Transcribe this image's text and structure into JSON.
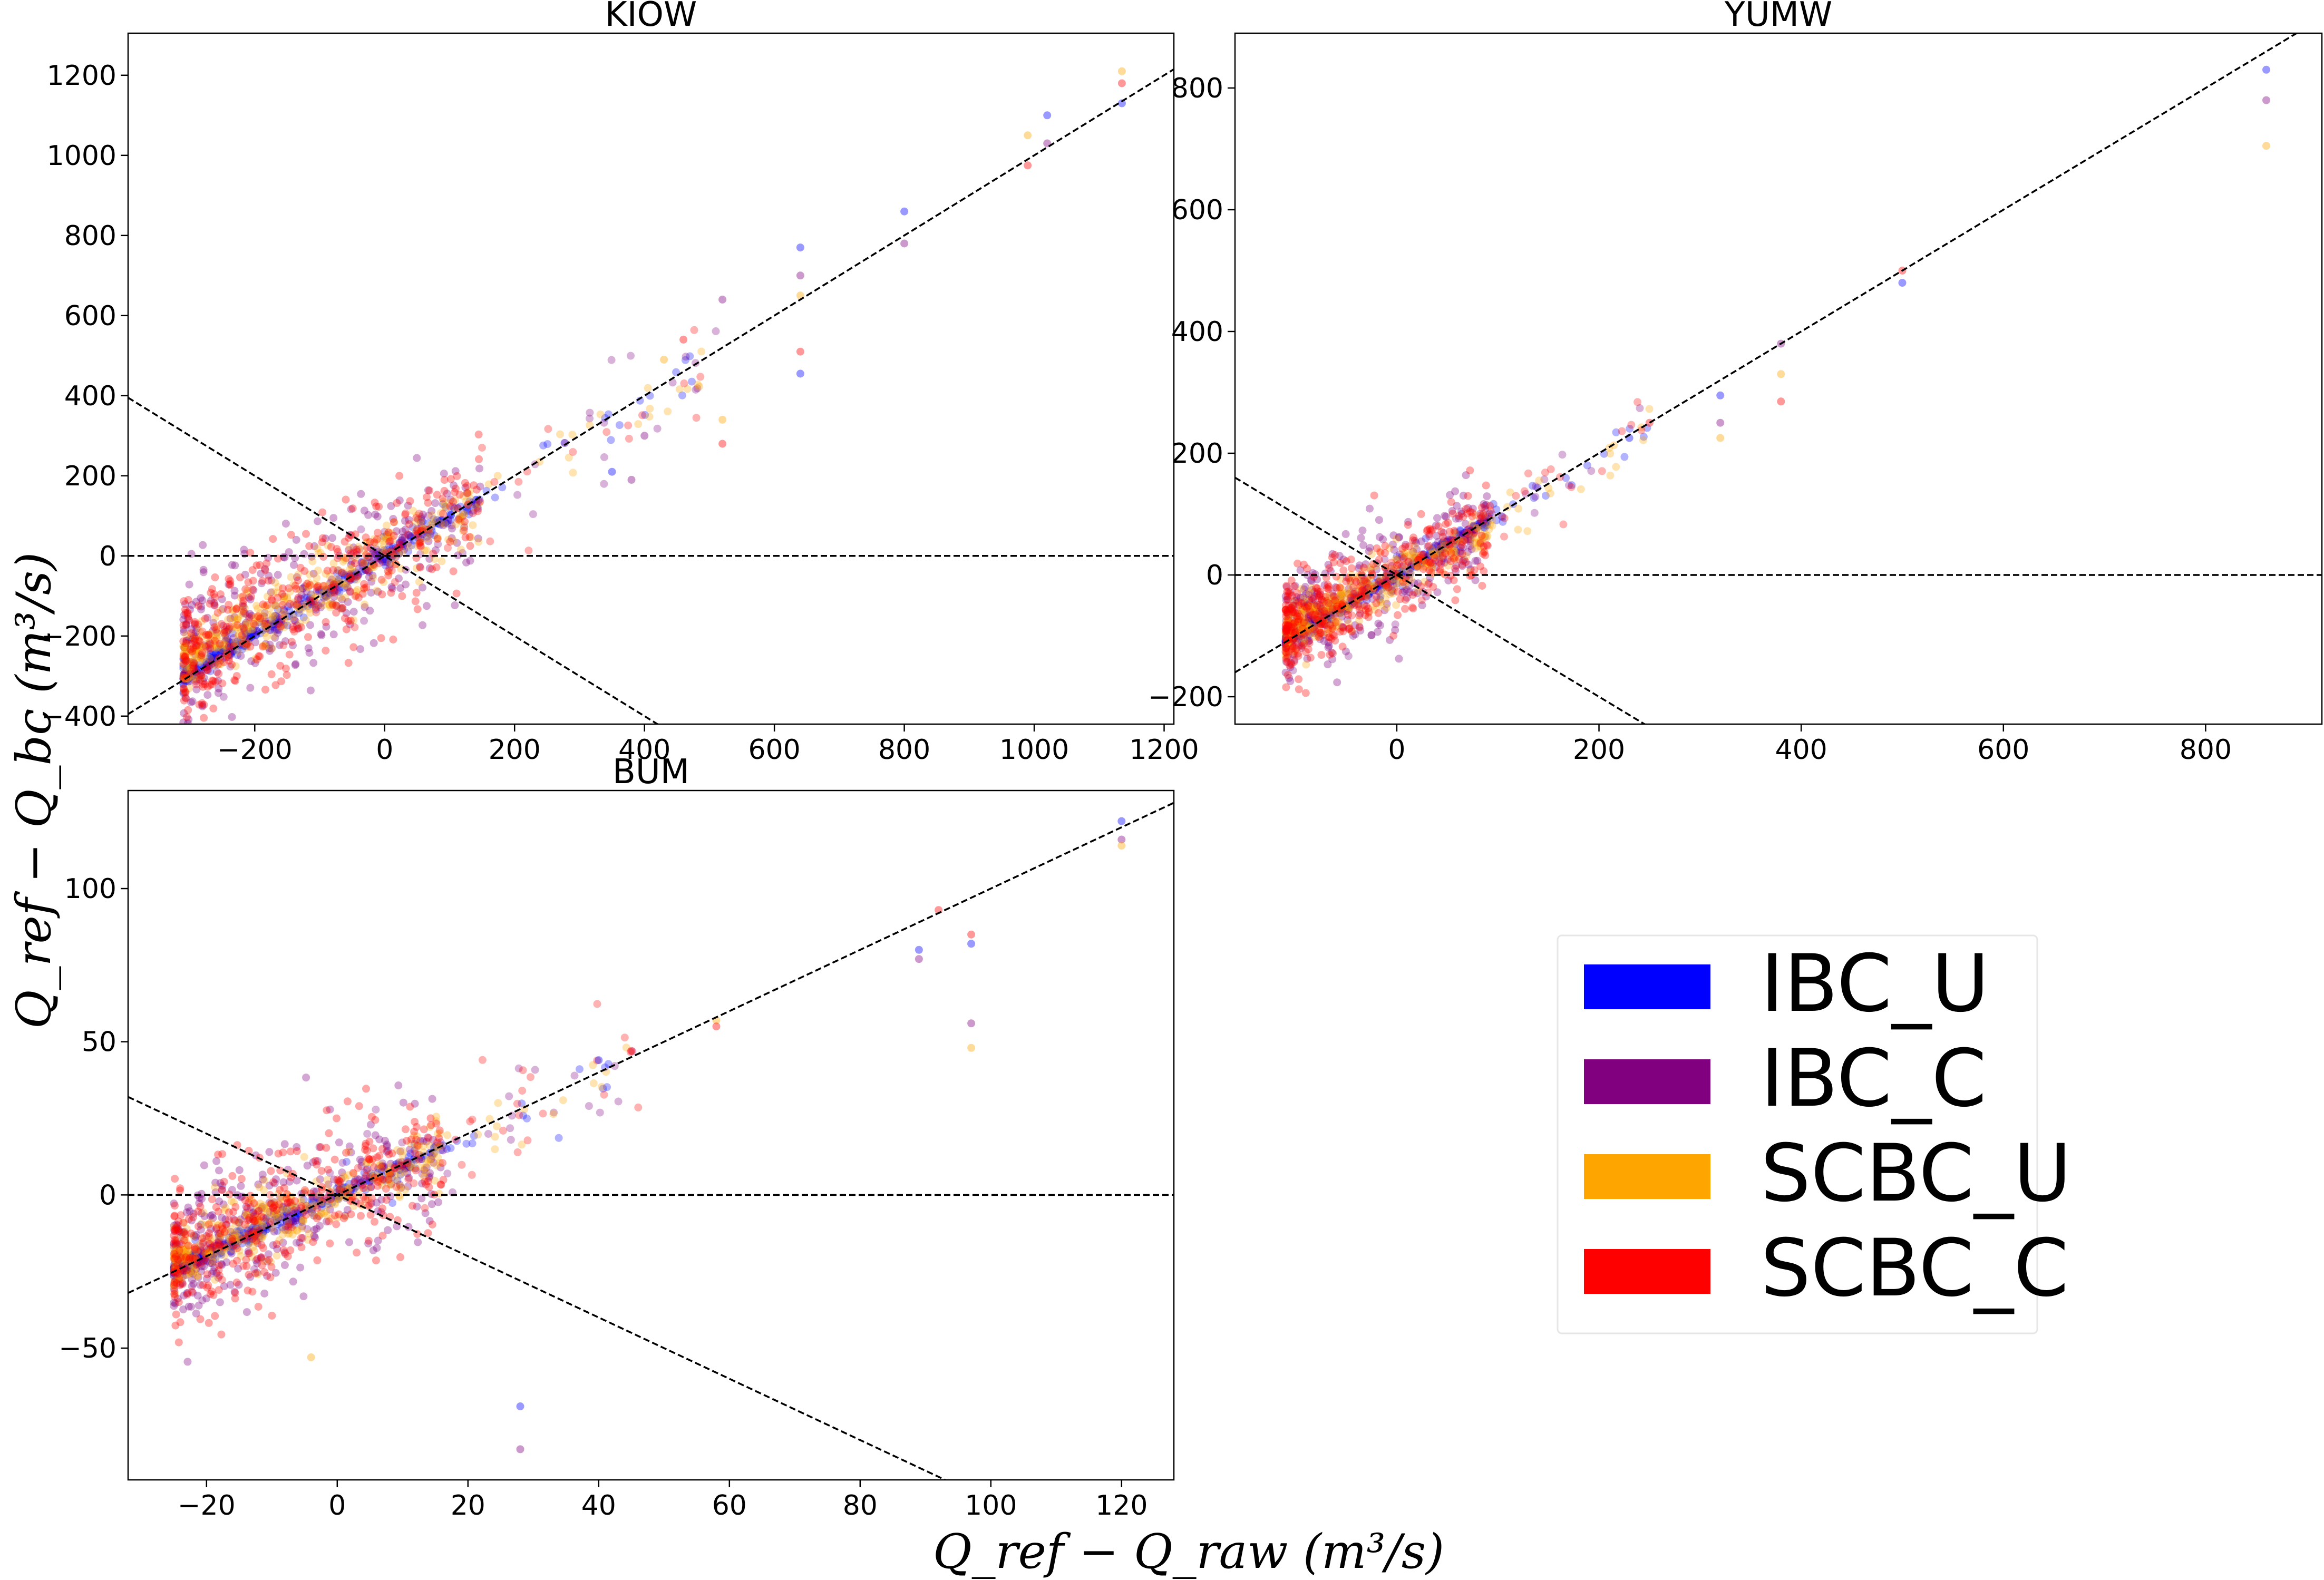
{
  "figure": {
    "xlabel": "Q_ref − Q_raw (m³/s)",
    "ylabel": "Q_ref − Q_bc (m³/s)",
    "colors": {
      "IBC_U": "#0000ff",
      "IBC_C": "#800080",
      "SCBC_U": "#ffa500",
      "SCBC_C": "#ff0000"
    }
  },
  "legend": {
    "placement": "lower-right",
    "entries": [
      {
        "label": "IBC_U",
        "color": "#0000ff"
      },
      {
        "label": "IBC_C",
        "color": "#800080"
      },
      {
        "label": "SCBC_U",
        "color": "#ffa500"
      },
      {
        "label": "SCBC_C",
        "color": "#ff0000"
      }
    ]
  },
  "chart_data": [
    {
      "type": "scatter",
      "title": "KIOW",
      "xlim": [
        -395,
        1215
      ],
      "ylim": [
        -420,
        1305
      ],
      "xticks": [
        -200,
        0,
        200,
        400,
        600,
        800,
        1000,
        1200
      ],
      "xtick_labels": [
        "−200",
        "0",
        "200",
        "400",
        "600",
        "800",
        "1000",
        "1200"
      ],
      "yticks": [
        -400,
        -200,
        0,
        200,
        400,
        600,
        800,
        1000,
        1200
      ],
      "ytick_labels": [
        "−400",
        "−200",
        "0",
        "200",
        "400",
        "600",
        "800",
        "1000",
        "1200"
      ],
      "reference_lines": [
        {
          "name": "1:1",
          "slope": 1
        },
        {
          "name": "zero",
          "slope": 0
        },
        {
          "name": "-1:1",
          "slope": -1
        }
      ],
      "cloud": {
        "x_min": -310,
        "x_max": 300,
        "y_spread": 60,
        "sparse_x_max": 520
      },
      "highlights": [
        {
          "x": 640,
          "y": 770
        },
        {
          "x": 640,
          "y": 700
        },
        {
          "x": 640,
          "y": 650
        },
        {
          "x": 640,
          "y": 510
        },
        {
          "x": 640,
          "y": 455
        },
        {
          "x": 520,
          "y": 640
        },
        {
          "x": 520,
          "y": 340
        },
        {
          "x": 520,
          "y": 280
        },
        {
          "x": 800,
          "y": 860
        },
        {
          "x": 800,
          "y": 780
        },
        {
          "x": 990,
          "y": 1050
        },
        {
          "x": 990,
          "y": 975
        },
        {
          "x": 1020,
          "y": 1100
        },
        {
          "x": 1020,
          "y": 1030
        },
        {
          "x": 1135,
          "y": 1210
        },
        {
          "x": 1135,
          "y": 1180
        },
        {
          "x": 1135,
          "y": 1130
        },
        {
          "x": 400,
          "y": 300
        },
        {
          "x": 430,
          "y": 490
        },
        {
          "x": 460,
          "y": 540
        },
        {
          "x": 350,
          "y": 210
        },
        {
          "x": 380,
          "y": 190
        }
      ]
    },
    {
      "type": "scatter",
      "title": "YUMW",
      "xlim": [
        -160,
        915
      ],
      "ylim": [
        -245,
        890
      ],
      "xticks": [
        0,
        200,
        400,
        600,
        800
      ],
      "xtick_labels": [
        "0",
        "200",
        "400",
        "600",
        "800"
      ],
      "yticks": [
        -200,
        0,
        200,
        400,
        600,
        800
      ],
      "ytick_labels": [
        "−200",
        "0",
        "200",
        "400",
        "600",
        "800"
      ],
      "reference_lines": [
        {
          "name": "1:1",
          "slope": 1
        },
        {
          "name": "zero",
          "slope": 0
        },
        {
          "name": "-1:1",
          "slope": -1
        }
      ],
      "cloud": {
        "x_min": -110,
        "x_max": 160,
        "y_spread": 30,
        "sparse_x_max": 250
      },
      "highlights": [
        {
          "x": 860,
          "y": 830
        },
        {
          "x": 860,
          "y": 780
        },
        {
          "x": 860,
          "y": 705
        },
        {
          "x": 500,
          "y": 500
        },
        {
          "x": 500,
          "y": 480
        },
        {
          "x": 380,
          "y": 380
        },
        {
          "x": 380,
          "y": 330
        },
        {
          "x": 380,
          "y": 285
        },
        {
          "x": 320,
          "y": 295
        },
        {
          "x": 320,
          "y": 250
        },
        {
          "x": 320,
          "y": 225
        },
        {
          "x": 250,
          "y": 250
        },
        {
          "x": 230,
          "y": 225
        }
      ]
    },
    {
      "type": "scatter",
      "title": "BUM",
      "xlim": [
        -32,
        128
      ],
      "ylim": [
        -93,
        132
      ],
      "xticks": [
        -20,
        0,
        20,
        40,
        60,
        80,
        100,
        120
      ],
      "xtick_labels": [
        "−20",
        "0",
        "20",
        "40",
        "60",
        "80",
        "100",
        "120"
      ],
      "yticks": [
        -50,
        0,
        50,
        100
      ],
      "ytick_labels": [
        "−50",
        "0",
        "50",
        "100"
      ],
      "reference_lines": [
        {
          "name": "1:1",
          "slope": 1
        },
        {
          "name": "zero",
          "slope": 0
        },
        {
          "name": "-1:1",
          "slope": -1
        }
      ],
      "cloud": {
        "x_min": -25,
        "x_max": 30,
        "y_spread": 8,
        "sparse_x_max": 47
      },
      "highlights": [
        {
          "x": 120,
          "y": 122
        },
        {
          "x": 120,
          "y": 116
        },
        {
          "x": 120,
          "y": 114
        },
        {
          "x": 97,
          "y": 85
        },
        {
          "x": 97,
          "y": 82
        },
        {
          "x": 97,
          "y": 56
        },
        {
          "x": 97,
          "y": 48
        },
        {
          "x": 92,
          "y": 93
        },
        {
          "x": 89,
          "y": 80
        },
        {
          "x": 89,
          "y": 77
        },
        {
          "x": 58,
          "y": 57
        },
        {
          "x": 58,
          "y": 55
        },
        {
          "x": 28,
          "y": -69
        },
        {
          "x": 28,
          "y": -83
        },
        {
          "x": -4,
          "y": -53
        },
        {
          "x": 45,
          "y": 47
        },
        {
          "x": 40,
          "y": 44
        }
      ]
    }
  ]
}
